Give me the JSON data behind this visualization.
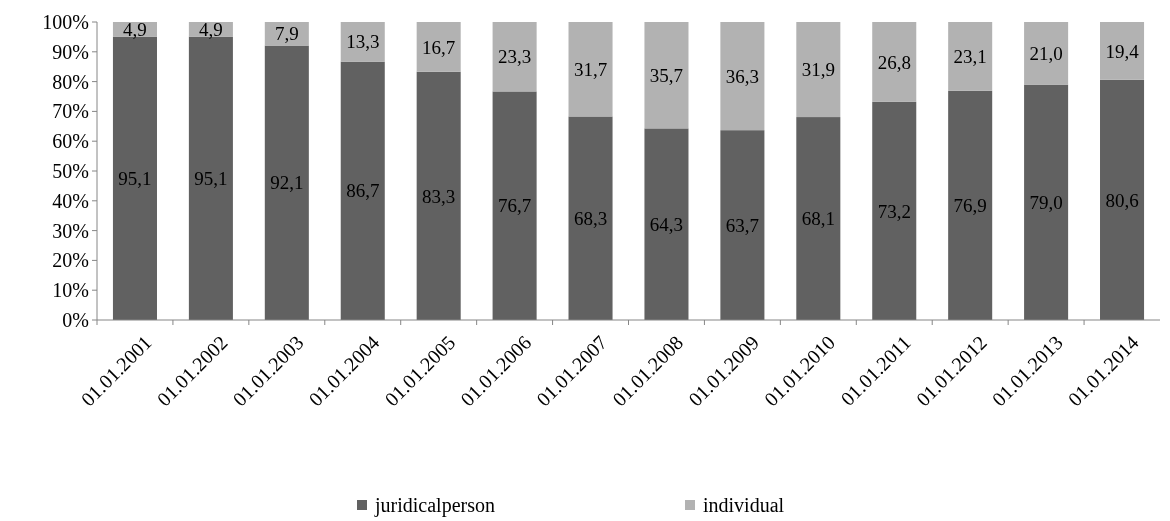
{
  "chart_data": {
    "type": "bar",
    "stacked": true,
    "categories": [
      "01.01.2001",
      "01.01.2002",
      "01.01.2003",
      "01.01.2004",
      "01.01.2005",
      "01.01.2006",
      "01.01.2007",
      "01.01.2008",
      "01.01.2009",
      "01.01.2010",
      "01.01.2011",
      "01.01.2012",
      "01.01.2013",
      "01.01.2014"
    ],
    "series": [
      {
        "name": "juridicalperson",
        "color": "#616161",
        "values": [
          95.1,
          95.1,
          92.1,
          86.7,
          83.3,
          76.7,
          68.3,
          64.3,
          63.7,
          68.1,
          73.2,
          76.9,
          79.0,
          80.6
        ],
        "value_labels": [
          "95,1",
          "95,1",
          "92,1",
          "86,7",
          "83,3",
          "76,7",
          "68,3",
          "64,3",
          "63,7",
          "68,1",
          "73,2",
          "76,9",
          "79,0",
          "80,6"
        ]
      },
      {
        "name": "individual",
        "color": "#b2b2b2",
        "values": [
          4.9,
          4.9,
          7.9,
          13.3,
          16.7,
          23.3,
          31.7,
          35.7,
          36.3,
          31.9,
          26.8,
          23.1,
          21.0,
          19.4
        ],
        "value_labels": [
          "4,9",
          "4,9",
          "7,9",
          "13,3",
          "16,7",
          "23,3",
          "31,7",
          "35,7",
          "36,3",
          "31,9",
          "26,8",
          "23,1",
          "21,0",
          "19,4"
        ]
      }
    ],
    "ylim": [
      0,
      100
    ],
    "yticks": [
      {
        "value": 0,
        "label": "0%"
      },
      {
        "value": 10,
        "label": "10%"
      },
      {
        "value": 20,
        "label": "20%"
      },
      {
        "value": 30,
        "label": "30%"
      },
      {
        "value": 40,
        "label": "40%"
      },
      {
        "value": 50,
        "label": "50%"
      },
      {
        "value": 60,
        "label": "60%"
      },
      {
        "value": 70,
        "label": "70%"
      },
      {
        "value": 80,
        "label": "80%"
      },
      {
        "value": 90,
        "label": "90%"
      },
      {
        "value": 100,
        "label": "100%"
      }
    ],
    "grid": false,
    "legend": "bottom"
  }
}
